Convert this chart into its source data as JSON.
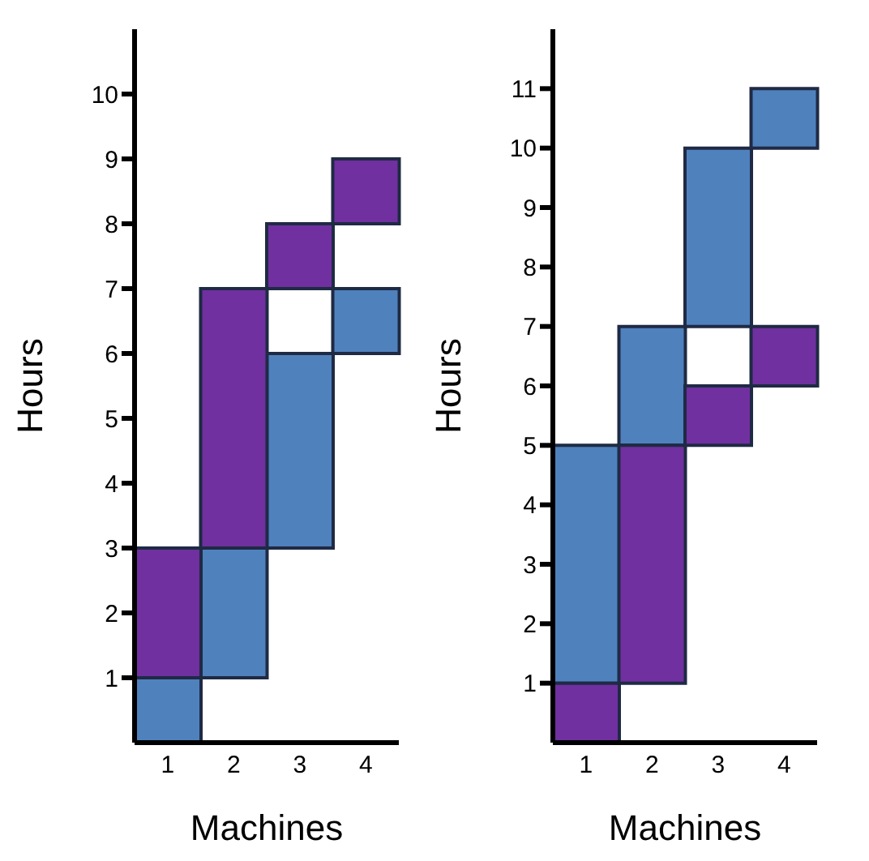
{
  "chart_data": [
    {
      "type": "bar",
      "xlabel": "Machines",
      "ylabel": "Hours",
      "categories": [
        "1",
        "2",
        "3",
        "4"
      ],
      "ylim": [
        0,
        11
      ],
      "yticks": [
        1,
        2,
        3,
        4,
        5,
        6,
        7,
        8,
        9,
        10
      ],
      "grid": false,
      "legend": false,
      "series": [
        {
          "color": "#4f81bd",
          "base": [
            0,
            1,
            3,
            6
          ],
          "values": [
            1,
            2,
            3,
            1
          ]
        },
        {
          "color": "#7030a0",
          "base": [
            1,
            3,
            7,
            8
          ],
          "values": [
            2,
            4,
            1,
            1
          ]
        }
      ]
    },
    {
      "type": "bar",
      "xlabel": "Machines",
      "ylabel": "Hours",
      "categories": [
        "1",
        "2",
        "3",
        "4"
      ],
      "ylim": [
        0,
        12
      ],
      "yticks": [
        1,
        2,
        3,
        4,
        5,
        6,
        7,
        8,
        9,
        10,
        11
      ],
      "grid": false,
      "legend": false,
      "series": [
        {
          "color": "#4f81bd",
          "base": [
            1,
            5,
            7,
            10
          ],
          "values": [
            4,
            2,
            3,
            1
          ]
        },
        {
          "color": "#7030a0",
          "base": [
            0,
            1,
            5,
            6
          ],
          "values": [
            1,
            4,
            1,
            1
          ]
        }
      ]
    }
  ]
}
